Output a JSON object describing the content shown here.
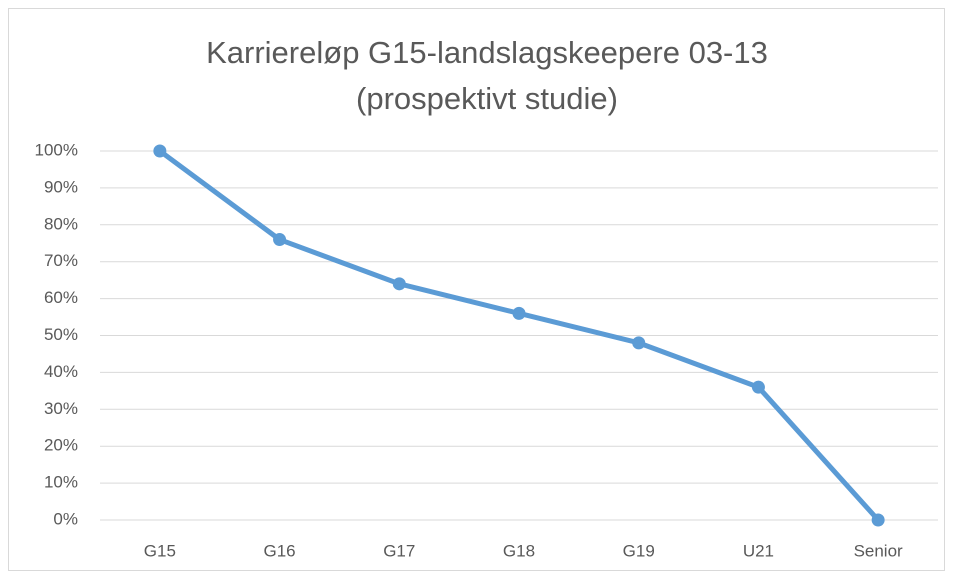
{
  "chart_data": {
    "type": "line",
    "title": [
      "Karriereløp G15-landslagskeepere 03-13",
      "(prospektivt studie)"
    ],
    "categories": [
      "G15",
      "G16",
      "G17",
      "G18",
      "G19",
      "U21",
      "Senior"
    ],
    "values": [
      100,
      76,
      64,
      56,
      48,
      36,
      0
    ],
    "color": "#5b9bd5",
    "ylim": [
      0,
      100
    ],
    "yticks": [
      {
        "value": 0,
        "label": "0%"
      },
      {
        "value": 10,
        "label": "10%"
      },
      {
        "value": 20,
        "label": "20%"
      },
      {
        "value": 30,
        "label": "30%"
      },
      {
        "value": 40,
        "label": "40%"
      },
      {
        "value": 50,
        "label": "50%"
      },
      {
        "value": 60,
        "label": "60%"
      },
      {
        "value": 70,
        "label": "70%"
      },
      {
        "value": 80,
        "label": "80%"
      },
      {
        "value": 90,
        "label": "90%"
      },
      {
        "value": 100,
        "label": "100%"
      }
    ],
    "grid": true
  }
}
